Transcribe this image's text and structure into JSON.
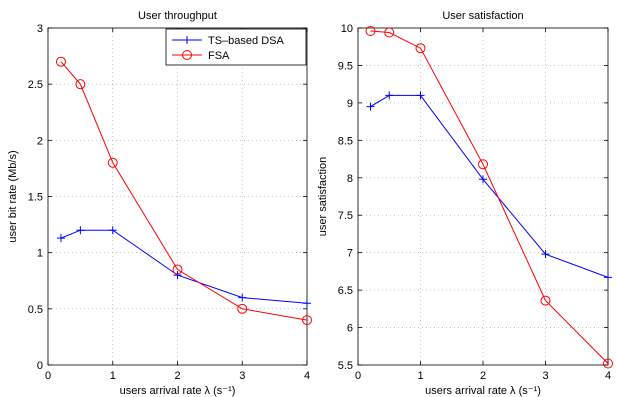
{
  "chart_data": [
    {
      "type": "line",
      "title": "User throughput",
      "xlabel": "users arrival rate λ  (s⁻¹)",
      "ylabel": "user bit rate (Mb/s)",
      "xlim": [
        0,
        4
      ],
      "ylim": [
        0,
        3
      ],
      "xticks": [
        "0",
        "1",
        "2",
        "3",
        "4"
      ],
      "yticks": [
        "0",
        "0.5",
        "1",
        "1.5",
        "2",
        "2.5",
        "3"
      ],
      "grid": true,
      "legend_position": "top-right",
      "series": [
        {
          "name": "TS–based DSA",
          "color": "#0000ff",
          "marker": "plus",
          "x": [
            0.2,
            0.5,
            1,
            2,
            3,
            4
          ],
          "y": [
            1.13,
            1.2,
            1.2,
            0.8,
            0.6,
            0.55
          ]
        },
        {
          "name": "FSA",
          "color": "#ff0000",
          "marker": "circle",
          "x": [
            0.2,
            0.5,
            1,
            2,
            3,
            4
          ],
          "y": [
            2.7,
            2.5,
            1.8,
            0.85,
            0.5,
            0.4
          ]
        }
      ]
    },
    {
      "type": "line",
      "title": "User satisfaction",
      "xlabel": "users arrival rate λ  (s⁻¹)",
      "ylabel": "user satisfaction",
      "xlim": [
        0,
        4
      ],
      "ylim": [
        5.5,
        10
      ],
      "xticks": [
        "0",
        "1",
        "2",
        "3",
        "4"
      ],
      "yticks": [
        "5.5",
        "6",
        "6.5",
        "7",
        "7.5",
        "8",
        "8.5",
        "9",
        "9.5",
        "10"
      ],
      "grid": true,
      "series": [
        {
          "name": "TS–based DSA",
          "color": "#0000ff",
          "marker": "plus",
          "x": [
            0.2,
            0.5,
            1,
            2,
            3,
            4
          ],
          "y": [
            8.95,
            9.1,
            9.1,
            7.98,
            6.98,
            6.67
          ]
        },
        {
          "name": "FSA",
          "color": "#ff0000",
          "marker": "circle",
          "x": [
            0.2,
            0.5,
            1,
            2,
            3,
            4
          ],
          "y": [
            9.96,
            9.94,
            9.73,
            8.18,
            6.36,
            5.52
          ]
        }
      ]
    }
  ]
}
